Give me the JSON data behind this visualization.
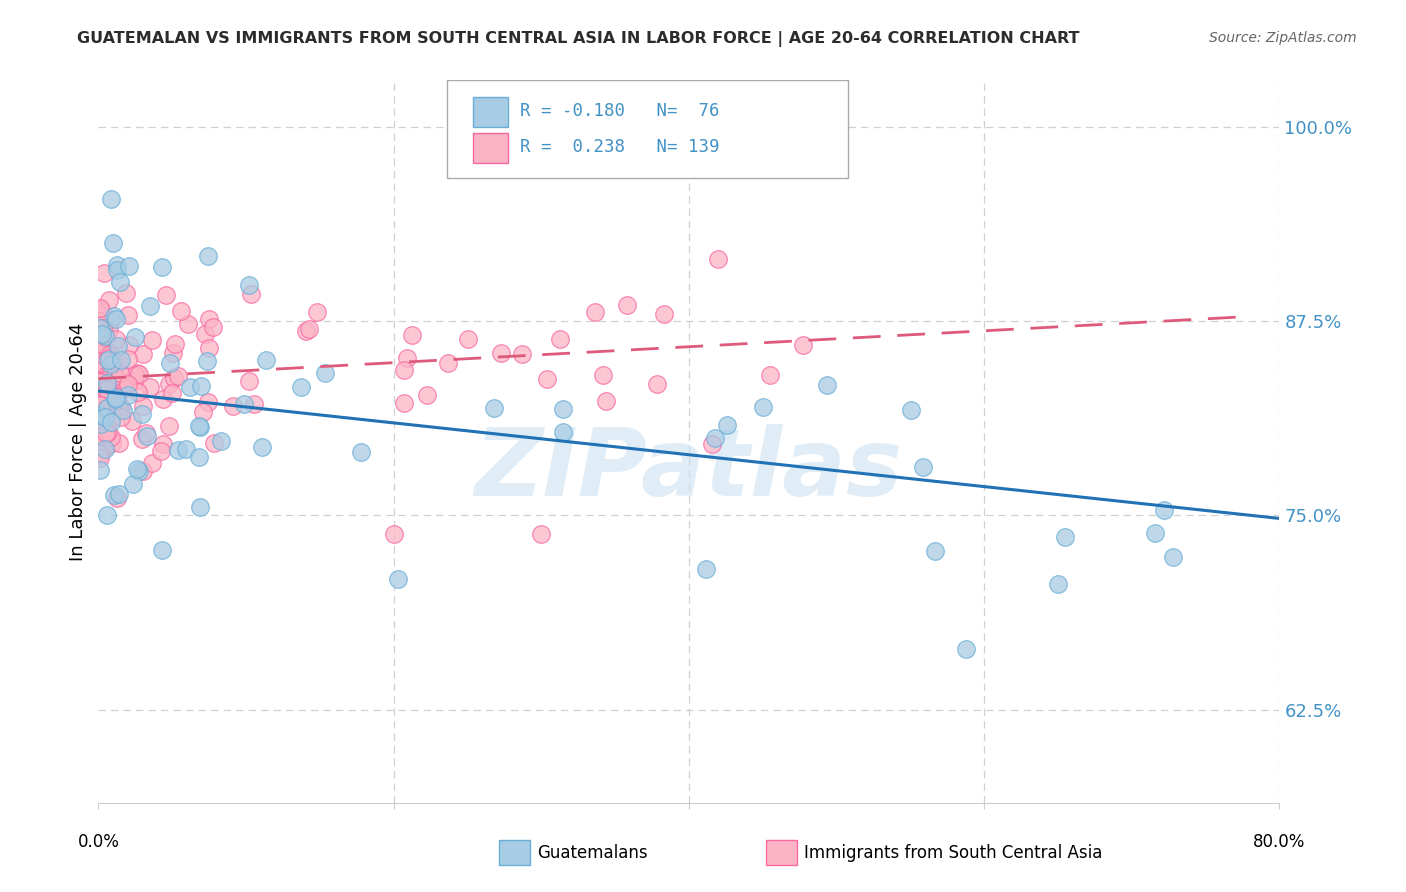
{
  "title": "GUATEMALAN VS IMMIGRANTS FROM SOUTH CENTRAL ASIA IN LABOR FORCE | AGE 20-64 CORRELATION CHART",
  "source": "Source: ZipAtlas.com",
  "ylabel": "In Labor Force | Age 20-64",
  "ytick_vals": [
    0.625,
    0.75,
    0.875,
    1.0
  ],
  "ytick_labels": [
    "62.5%",
    "75.0%",
    "87.5%",
    "100.0%"
  ],
  "xmin": 0.0,
  "xmax": 0.8,
  "ymin": 0.565,
  "ymax": 1.03,
  "blue_color": "#a8cce4",
  "blue_edge": "#6aaed6",
  "pink_color": "#fbb4c5",
  "pink_edge": "#f768a1",
  "blue_line_color": "#2171b5",
  "pink_line_color": "#de5a7a",
  "R_blue": -0.18,
  "N_blue": 76,
  "R_pink": 0.238,
  "N_pink": 139,
  "legend_label_blue": "Guatemalans",
  "legend_label_pink": "Immigrants from South Central Asia",
  "watermark_text": "ZIPatlas",
  "blue_line_x0": 0.0,
  "blue_line_x1": 0.8,
  "blue_line_y0": 0.83,
  "blue_line_y1": 0.748,
  "pink_line_x0": 0.0,
  "pink_line_x1": 0.78,
  "pink_line_y0": 0.838,
  "pink_line_y1": 0.878,
  "grid_color": "#d0d0d0",
  "ytick_color": "#4292c6"
}
